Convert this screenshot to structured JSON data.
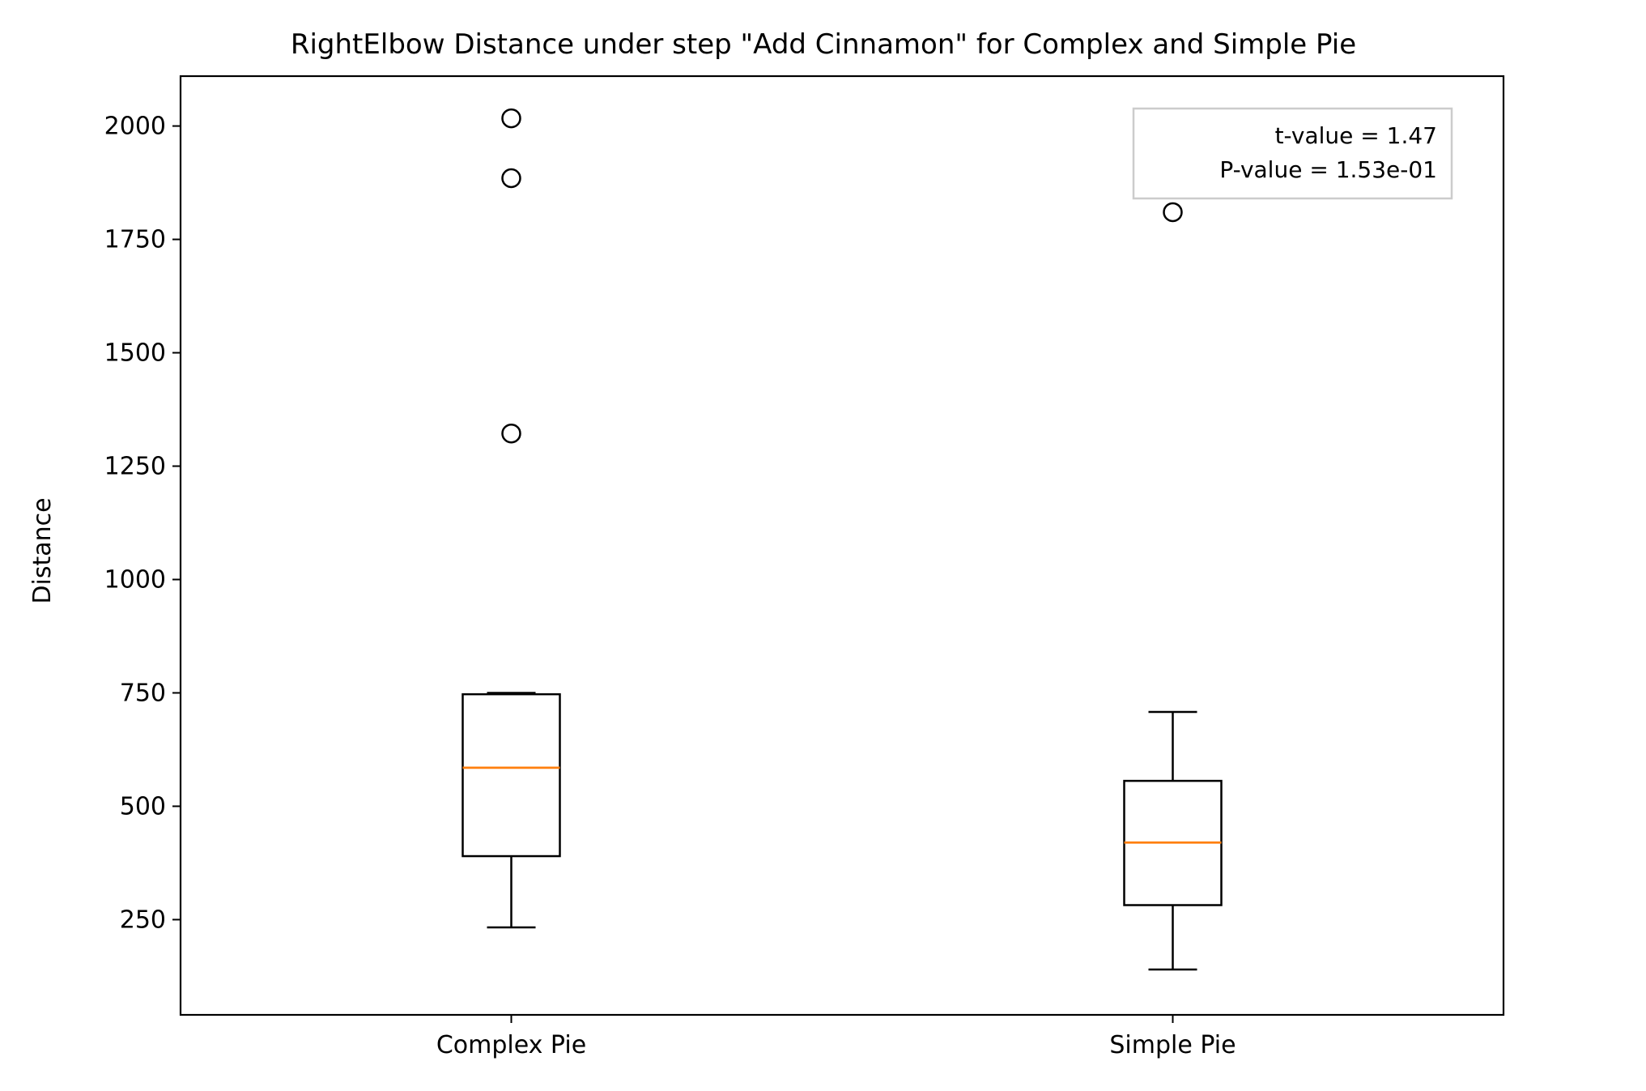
{
  "chart_data": {
    "type": "box",
    "title": "RightElbow Distance under step \"Add Cinnamon\" for Complex and Simple Pie",
    "xlabel": "",
    "ylabel": "Distance",
    "ylim": [
      40,
      2110
    ],
    "yticks": [
      250,
      500,
      750,
      1000,
      1250,
      1500,
      1750,
      2000
    ],
    "categories": [
      "Complex Pie",
      "Simple Pie"
    ],
    "boxes": [
      {
        "name": "Complex Pie",
        "whisker_low": 233,
        "q1": 390,
        "median": 585,
        "q3": 747,
        "whisker_high": 750,
        "outliers": [
          1322,
          1885,
          2017
        ]
      },
      {
        "name": "Simple Pie",
        "whisker_low": 140,
        "q1": 282,
        "median": 420,
        "q3": 556,
        "whisker_high": 708,
        "outliers": [
          1810
        ]
      }
    ],
    "grid": false,
    "annotation": {
      "placement": "top-right",
      "lines": [
        "t-value = 1.47",
        "P-value = 1.53e-01"
      ]
    },
    "colors": {
      "box": "#000000",
      "median": "#ff7f0e",
      "annotation_border": "#cccccc"
    }
  }
}
